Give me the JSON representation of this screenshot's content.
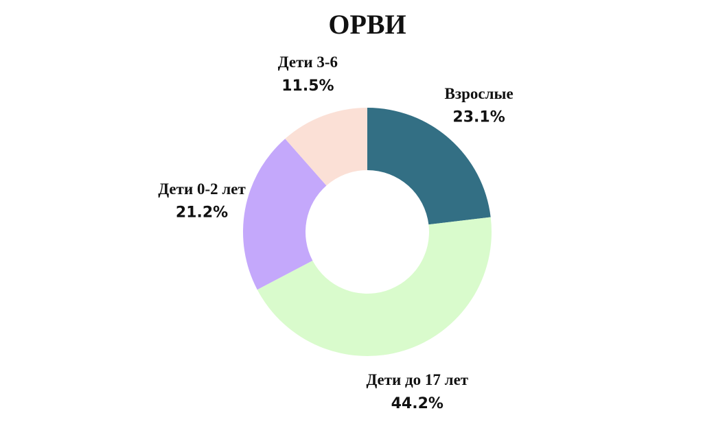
{
  "chart_data": {
    "type": "donut",
    "title": "ОРВИ",
    "categories": [
      "Взрослые",
      "Дети до 17 лет",
      "Дети 0-2 лет",
      "Дети 3-6"
    ],
    "values": [
      23.1,
      44.2,
      21.2,
      11.5
    ],
    "value_labels": [
      "23.1%",
      "44.2%",
      "21.2%",
      "11.5%"
    ],
    "colors": [
      "#336f84",
      "#d9fbcc",
      "#c4a8fb",
      "#fbe0d6"
    ]
  }
}
